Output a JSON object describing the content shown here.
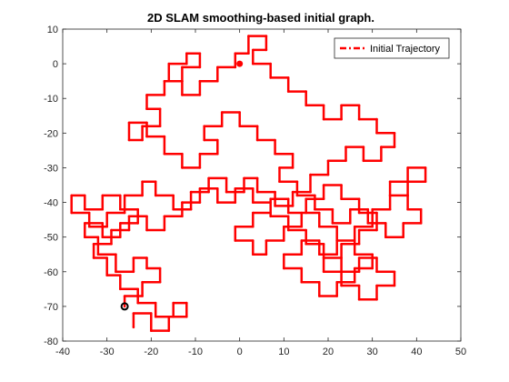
{
  "chart_data": {
    "type": "line",
    "title": "2D SLAM smoothing-based initial graph.",
    "xlabel": "",
    "ylabel": "",
    "xlim": [
      -40,
      50
    ],
    "ylim": [
      -80,
      10
    ],
    "x_ticks": [
      -40,
      -30,
      -20,
      -10,
      0,
      10,
      20,
      30,
      40,
      50
    ],
    "y_ticks": [
      10,
      0,
      -10,
      -20,
      -30,
      -40,
      -50,
      -60,
      -70,
      -80
    ],
    "x_tick_labels": [
      "-40",
      "-30",
      "-20",
      "-10",
      "0",
      "10",
      "20",
      "30",
      "40",
      "50"
    ],
    "y_tick_labels": [
      "10",
      "0",
      "-10",
      "-20",
      "-30",
      "-40",
      "-50",
      "-60",
      "-70",
      "-80"
    ],
    "grid": false,
    "legend": {
      "position": "top-right",
      "entries": [
        "Initial Trajectory"
      ]
    },
    "series": [
      {
        "name": "Initial Trajectory",
        "color": "#ff0000",
        "line_style": "dash-dot",
        "points": [
          [
            -26,
            -70
          ],
          [
            -26,
            -67
          ],
          [
            -22,
            -67
          ],
          [
            -22,
            -63
          ],
          [
            -18,
            -63
          ],
          [
            -18,
            -59
          ],
          [
            -21,
            -59
          ],
          [
            -21,
            -56
          ],
          [
            -24,
            -56
          ],
          [
            -24,
            -60
          ],
          [
            -28,
            -60
          ],
          [
            -28,
            -55
          ],
          [
            -32,
            -55
          ],
          [
            -32,
            -50
          ],
          [
            -35,
            -50
          ],
          [
            -35,
            -46
          ],
          [
            -31,
            -46
          ],
          [
            -31,
            -50
          ],
          [
            -27,
            -50
          ],
          [
            -27,
            -46
          ],
          [
            -23,
            -46
          ],
          [
            -23,
            -42
          ],
          [
            -27,
            -42
          ],
          [
            -27,
            -38
          ],
          [
            -31,
            -38
          ],
          [
            -31,
            -42
          ],
          [
            -35,
            -42
          ],
          [
            -35,
            -38
          ],
          [
            -38,
            -38
          ],
          [
            -38,
            -43
          ],
          [
            -34,
            -43
          ],
          [
            -34,
            -47
          ],
          [
            -30,
            -47
          ],
          [
            -30,
            -43
          ],
          [
            -26,
            -43
          ],
          [
            -26,
            -38
          ],
          [
            -22,
            -38
          ],
          [
            -22,
            -34
          ],
          [
            -19,
            -34
          ],
          [
            -19,
            -38
          ],
          [
            -15,
            -38
          ],
          [
            -15,
            -42
          ],
          [
            -11,
            -42
          ],
          [
            -11,
            -37
          ],
          [
            -7,
            -37
          ],
          [
            -7,
            -33
          ],
          [
            -3,
            -33
          ],
          [
            -3,
            -37
          ],
          [
            1,
            -37
          ],
          [
            1,
            -33
          ],
          [
            4,
            -33
          ],
          [
            4,
            -37
          ],
          [
            8,
            -37
          ],
          [
            8,
            -41
          ],
          [
            12,
            -41
          ],
          [
            12,
            -37
          ],
          [
            16,
            -37
          ],
          [
            16,
            -32
          ],
          [
            20,
            -32
          ],
          [
            20,
            -28
          ],
          [
            24,
            -28
          ],
          [
            24,
            -24
          ],
          [
            28,
            -24
          ],
          [
            28,
            -28
          ],
          [
            32,
            -28
          ],
          [
            32,
            -24
          ],
          [
            35,
            -24
          ],
          [
            35,
            -20
          ],
          [
            31,
            -20
          ],
          [
            31,
            -16
          ],
          [
            27,
            -16
          ],
          [
            27,
            -12
          ],
          [
            23,
            -12
          ],
          [
            23,
            -16
          ],
          [
            19,
            -16
          ],
          [
            19,
            -12
          ],
          [
            15,
            -12
          ],
          [
            15,
            -8
          ],
          [
            11,
            -8
          ],
          [
            11,
            -4
          ],
          [
            7,
            -4
          ],
          [
            7,
            0
          ],
          [
            3,
            0
          ],
          [
            3,
            4
          ],
          [
            6,
            4
          ],
          [
            6,
            8
          ],
          [
            2,
            8
          ],
          [
            2,
            3
          ],
          [
            -1,
            3
          ],
          [
            -1,
            -1
          ],
          [
            -5,
            -1
          ],
          [
            -5,
            -5
          ],
          [
            -9,
            -5
          ],
          [
            -9,
            -9
          ],
          [
            -13,
            -9
          ],
          [
            -13,
            -5
          ],
          [
            -16,
            -5
          ],
          [
            -16,
            0
          ],
          [
            -12,
            0
          ],
          [
            -12,
            3
          ],
          [
            -9,
            3
          ],
          [
            -9,
            -1
          ],
          [
            -13,
            -1
          ],
          [
            -13,
            -5
          ],
          [
            -17,
            -5
          ],
          [
            -17,
            -9
          ],
          [
            -21,
            -9
          ],
          [
            -21,
            -13
          ],
          [
            -18,
            -13
          ],
          [
            -18,
            -18
          ],
          [
            -22,
            -18
          ],
          [
            -22,
            -22
          ],
          [
            -25,
            -22
          ],
          [
            -25,
            -17
          ],
          [
            -21,
            -17
          ],
          [
            -21,
            -21
          ],
          [
            -17,
            -21
          ],
          [
            -17,
            -26
          ],
          [
            -13,
            -26
          ],
          [
            -13,
            -30
          ],
          [
            -9,
            -30
          ],
          [
            -9,
            -26
          ],
          [
            -5,
            -26
          ],
          [
            -5,
            -22
          ],
          [
            -8,
            -22
          ],
          [
            -8,
            -18
          ],
          [
            -4,
            -18
          ],
          [
            -4,
            -14
          ],
          [
            0,
            -14
          ],
          [
            0,
            -18
          ],
          [
            4,
            -18
          ],
          [
            4,
            -22
          ],
          [
            8,
            -22
          ],
          [
            8,
            -26
          ],
          [
            12,
            -26
          ],
          [
            12,
            -30
          ],
          [
            9,
            -30
          ],
          [
            9,
            -34
          ],
          [
            13,
            -34
          ],
          [
            13,
            -38
          ],
          [
            17,
            -38
          ],
          [
            17,
            -42
          ],
          [
            21,
            -42
          ],
          [
            21,
            -46
          ],
          [
            25,
            -46
          ],
          [
            25,
            -42
          ],
          [
            29,
            -42
          ],
          [
            29,
            -46
          ],
          [
            33,
            -46
          ],
          [
            33,
            -50
          ],
          [
            37,
            -50
          ],
          [
            37,
            -46
          ],
          [
            41,
            -46
          ],
          [
            41,
            -42
          ],
          [
            38,
            -42
          ],
          [
            38,
            -38
          ],
          [
            34,
            -38
          ],
          [
            34,
            -34
          ],
          [
            38,
            -34
          ],
          [
            38,
            -30
          ],
          [
            42,
            -30
          ],
          [
            42,
            -34
          ],
          [
            38,
            -34
          ],
          [
            38,
            -38
          ],
          [
            34,
            -38
          ],
          [
            34,
            -42
          ],
          [
            30,
            -42
          ],
          [
            30,
            -47
          ],
          [
            26,
            -47
          ],
          [
            26,
            -51
          ],
          [
            22,
            -51
          ],
          [
            22,
            -55
          ],
          [
            18,
            -55
          ],
          [
            18,
            -51
          ],
          [
            14,
            -51
          ],
          [
            14,
            -55
          ],
          [
            10,
            -55
          ],
          [
            10,
            -59
          ],
          [
            14,
            -59
          ],
          [
            14,
            -63
          ],
          [
            18,
            -63
          ],
          [
            18,
            -67
          ],
          [
            22,
            -67
          ],
          [
            22,
            -63
          ],
          [
            26,
            -63
          ],
          [
            26,
            -59
          ],
          [
            30,
            -59
          ],
          [
            30,
            -55
          ],
          [
            26,
            -55
          ],
          [
            26,
            -51
          ],
          [
            22,
            -51
          ],
          [
            22,
            -47
          ],
          [
            18,
            -47
          ],
          [
            18,
            -43
          ],
          [
            14,
            -43
          ],
          [
            14,
            -47
          ],
          [
            10,
            -47
          ],
          [
            10,
            -51
          ],
          [
            6,
            -51
          ],
          [
            6,
            -55
          ],
          [
            3,
            -55
          ],
          [
            3,
            -51
          ],
          [
            -1,
            -51
          ],
          [
            -1,
            -47
          ],
          [
            3,
            -47
          ],
          [
            3,
            -43
          ],
          [
            7,
            -43
          ],
          [
            7,
            -39
          ],
          [
            11,
            -39
          ],
          [
            11,
            -43
          ],
          [
            15,
            -43
          ],
          [
            15,
            -39
          ],
          [
            19,
            -39
          ],
          [
            19,
            -35
          ],
          [
            23,
            -35
          ],
          [
            23,
            -39
          ],
          [
            27,
            -39
          ],
          [
            27,
            -43
          ],
          [
            31,
            -43
          ],
          [
            31,
            -48
          ],
          [
            27,
            -48
          ],
          [
            27,
            -52
          ],
          [
            23,
            -52
          ],
          [
            23,
            -56
          ],
          [
            19,
            -56
          ],
          [
            19,
            -60
          ],
          [
            23,
            -60
          ],
          [
            23,
            -64
          ],
          [
            27,
            -64
          ],
          [
            27,
            -68
          ],
          [
            31,
            -68
          ],
          [
            31,
            -64
          ],
          [
            35,
            -64
          ],
          [
            35,
            -60
          ],
          [
            31,
            -60
          ],
          [
            31,
            -56
          ],
          [
            27,
            -56
          ],
          [
            27,
            -60
          ],
          [
            23,
            -60
          ],
          [
            23,
            -56
          ],
          [
            19,
            -56
          ],
          [
            19,
            -52
          ],
          [
            15,
            -52
          ],
          [
            15,
            -48
          ],
          [
            11,
            -48
          ],
          [
            11,
            -44
          ],
          [
            7,
            -44
          ],
          [
            7,
            -40
          ],
          [
            3,
            -40
          ],
          [
            3,
            -36
          ],
          [
            -1,
            -36
          ],
          [
            -1,
            -40
          ],
          [
            -5,
            -40
          ],
          [
            -5,
            -36
          ],
          [
            -9,
            -36
          ],
          [
            -9,
            -40
          ],
          [
            -13,
            -40
          ],
          [
            -13,
            -44
          ],
          [
            -17,
            -44
          ],
          [
            -17,
            -48
          ],
          [
            -21,
            -48
          ],
          [
            -21,
            -44
          ],
          [
            -25,
            -44
          ],
          [
            -25,
            -48
          ],
          [
            -29,
            -48
          ],
          [
            -29,
            -52
          ],
          [
            -33,
            -52
          ],
          [
            -33,
            -56
          ],
          [
            -30,
            -56
          ],
          [
            -30,
            -61
          ],
          [
            -27,
            -61
          ],
          [
            -27,
            -65
          ],
          [
            -23,
            -65
          ],
          [
            -23,
            -69
          ],
          [
            -19,
            -69
          ],
          [
            -19,
            -73
          ],
          [
            -15,
            -73
          ],
          [
            -15,
            -69
          ],
          [
            -12,
            -69
          ],
          [
            -12,
            -73
          ],
          [
            -16,
            -73
          ],
          [
            -16,
            -77
          ],
          [
            -20,
            -77
          ],
          [
            -20,
            -72
          ],
          [
            -24,
            -72
          ],
          [
            -24,
            -76
          ]
        ]
      }
    ],
    "markers": [
      {
        "x": -26,
        "y": -70,
        "shape": "circle",
        "color": "#000000"
      },
      {
        "x": 0,
        "y": 0,
        "shape": "dot",
        "color": "#ff0000"
      }
    ]
  }
}
